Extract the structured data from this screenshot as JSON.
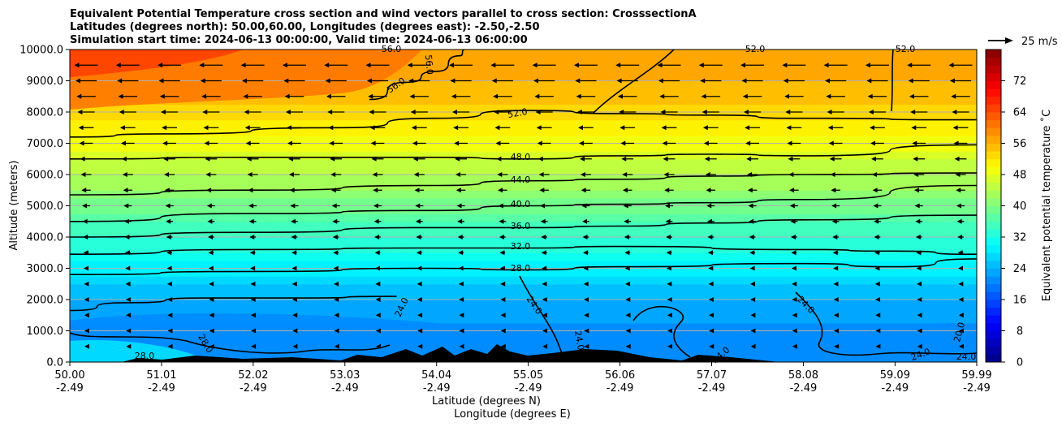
{
  "chart_data": {
    "type": "heatmap",
    "title_lines": [
      "Equivalent Potential Temperature cross section and wind vectors parallel to cross section: CrosssectionA",
      "Latitudes (degrees north): 50.00,60.00, Longitudes (degrees east): -2.50,-2.50",
      "Simulation start time: 2024-06-13 00:00:00, Valid time: 2024-06-13 06:00:00"
    ],
    "xlabel_line1": "Latitude (degrees N)",
    "xlabel_line2": "Longitude (degrees E)",
    "ylabel": "Altitude (meters)",
    "x_ticks": [
      {
        "lat": "50.00",
        "lon": "-2.49"
      },
      {
        "lat": "51.01",
        "lon": "-2.49"
      },
      {
        "lat": "52.02",
        "lon": "-2.49"
      },
      {
        "lat": "53.03",
        "lon": "-2.49"
      },
      {
        "lat": "54.04",
        "lon": "-2.49"
      },
      {
        "lat": "55.05",
        "lon": "-2.49"
      },
      {
        "lat": "56.06",
        "lon": "-2.49"
      },
      {
        "lat": "57.07",
        "lon": "-2.49"
      },
      {
        "lat": "58.08",
        "lon": "-2.49"
      },
      {
        "lat": "59.09",
        "lon": "-2.49"
      },
      {
        "lat": "59.99",
        "lon": "-2.49"
      }
    ],
    "y_ticks": [
      "0.0",
      "1000.0",
      "2000.0",
      "3000.0",
      "4000.0",
      "5000.0",
      "6000.0",
      "7000.0",
      "8000.0",
      "9000.0",
      "10000.0"
    ],
    "ylim": [
      0,
      10000
    ],
    "xlim": [
      50.0,
      59.99
    ],
    "grid": "horizontal",
    "colorbar": {
      "label": "Equivalent potential temperature $^\\circ$C",
      "label_display": "Equivalent potential temperature ˚C",
      "range": [
        0,
        80
      ],
      "ticks": [
        "0",
        "8",
        "16",
        "24",
        "32",
        "40",
        "48",
        "56",
        "64",
        "72"
      ]
    },
    "quiver_key": {
      "label": "25 m/s"
    },
    "contour_labels": [
      "52.0",
      "48.0",
      "44.0",
      "40.0",
      "36.0",
      "32.0",
      "28.0",
      "24.0",
      "56.0",
      "56.0",
      "56.0",
      "52.0",
      "52.0",
      "24.0",
      "24.0",
      "24.0",
      "20.0",
      "28.0",
      "28.0",
      "24.0",
      "24.0",
      "24.0"
    ],
    "field_levels_by_altitude": [
      {
        "altitude_m": 0,
        "theta_e_c": 20
      },
      {
        "altitude_m": 1000,
        "theta_e_c": 21
      },
      {
        "altitude_m": 2000,
        "theta_e_c": 24
      },
      {
        "altitude_m": 3000,
        "theta_e_c": 29
      },
      {
        "altitude_m": 4000,
        "theta_e_c": 34
      },
      {
        "altitude_m": 5000,
        "theta_e_c": 39
      },
      {
        "altitude_m": 6000,
        "theta_e_c": 44
      },
      {
        "altitude_m": 7000,
        "theta_e_c": 49
      },
      {
        "altitude_m": 8000,
        "theta_e_c": 53
      },
      {
        "altitude_m": 9000,
        "theta_e_c": 56
      },
      {
        "altitude_m": 10000,
        "theta_e_c": 58
      }
    ],
    "contour_lines": [
      {
        "level": "28.0",
        "points": [
          [
            50.0,
            2800
          ],
          [
            52.0,
            2900
          ],
          [
            54.0,
            3000
          ],
          [
            55.05,
            2950
          ],
          [
            56.06,
            3050
          ],
          [
            58.08,
            3150
          ],
          [
            59.09,
            3050
          ],
          [
            59.99,
            3300
          ]
        ]
      },
      {
        "level": "32.0",
        "points": [
          [
            50.0,
            3450
          ],
          [
            52.0,
            3600
          ],
          [
            54.0,
            3650
          ],
          [
            55.05,
            3650
          ],
          [
            56.06,
            3700
          ],
          [
            58.08,
            3600
          ],
          [
            59.09,
            3550
          ],
          [
            59.99,
            3450
          ]
        ]
      },
      {
        "level": "36.0",
        "points": [
          [
            50.0,
            4000
          ],
          [
            52.0,
            4150
          ],
          [
            54.0,
            4300
          ],
          [
            55.05,
            4300
          ],
          [
            56.06,
            4350
          ],
          [
            57.07,
            4450
          ],
          [
            58.08,
            4550
          ],
          [
            59.99,
            4700
          ]
        ]
      },
      {
        "level": "40.0",
        "points": [
          [
            50.0,
            4500
          ],
          [
            52.0,
            4750
          ],
          [
            54.0,
            4850
          ],
          [
            55.05,
            5000
          ],
          [
            56.06,
            5050
          ],
          [
            57.07,
            5100
          ],
          [
            58.08,
            5200
          ],
          [
            59.99,
            5650
          ]
        ]
      },
      {
        "level": "44.0",
        "points": [
          [
            50.0,
            5350
          ],
          [
            52.0,
            5500
          ],
          [
            54.0,
            5650
          ],
          [
            55.05,
            5800
          ],
          [
            56.06,
            5850
          ],
          [
            57.07,
            5950
          ],
          [
            58.08,
            6000
          ],
          [
            59.99,
            6050
          ]
        ]
      },
      {
        "level": "48.0",
        "points": [
          [
            50.0,
            6500
          ],
          [
            52.0,
            6550
          ],
          [
            54.0,
            6550
          ],
          [
            55.05,
            6500
          ],
          [
            56.06,
            6600
          ],
          [
            57.07,
            6650
          ],
          [
            58.08,
            6600
          ],
          [
            59.99,
            6950
          ]
        ]
      },
      {
        "level": "52.0",
        "points": [
          [
            50.0,
            7200
          ],
          [
            51.0,
            7300
          ],
          [
            53.0,
            7500
          ],
          [
            54.0,
            7800
          ],
          [
            55.05,
            8050
          ],
          [
            56.06,
            7950
          ],
          [
            57.07,
            7900
          ],
          [
            58.08,
            7800
          ],
          [
            59.99,
            7750
          ]
        ]
      },
      {
        "level": "56.0",
        "points": [
          [
            53.3,
            8400
          ],
          [
            53.7,
            8950
          ],
          [
            54.04,
            9300
          ],
          [
            54.3,
            9800
          ],
          [
            54.35,
            10000
          ]
        ]
      },
      {
        "level": "24.0",
        "points": [
          [
            50.0,
            1650
          ],
          [
            50.6,
            1900
          ],
          [
            51.5,
            2050
          ],
          [
            52.5,
            2050
          ],
          [
            53.6,
            2100
          ]
        ]
      }
    ]
  }
}
